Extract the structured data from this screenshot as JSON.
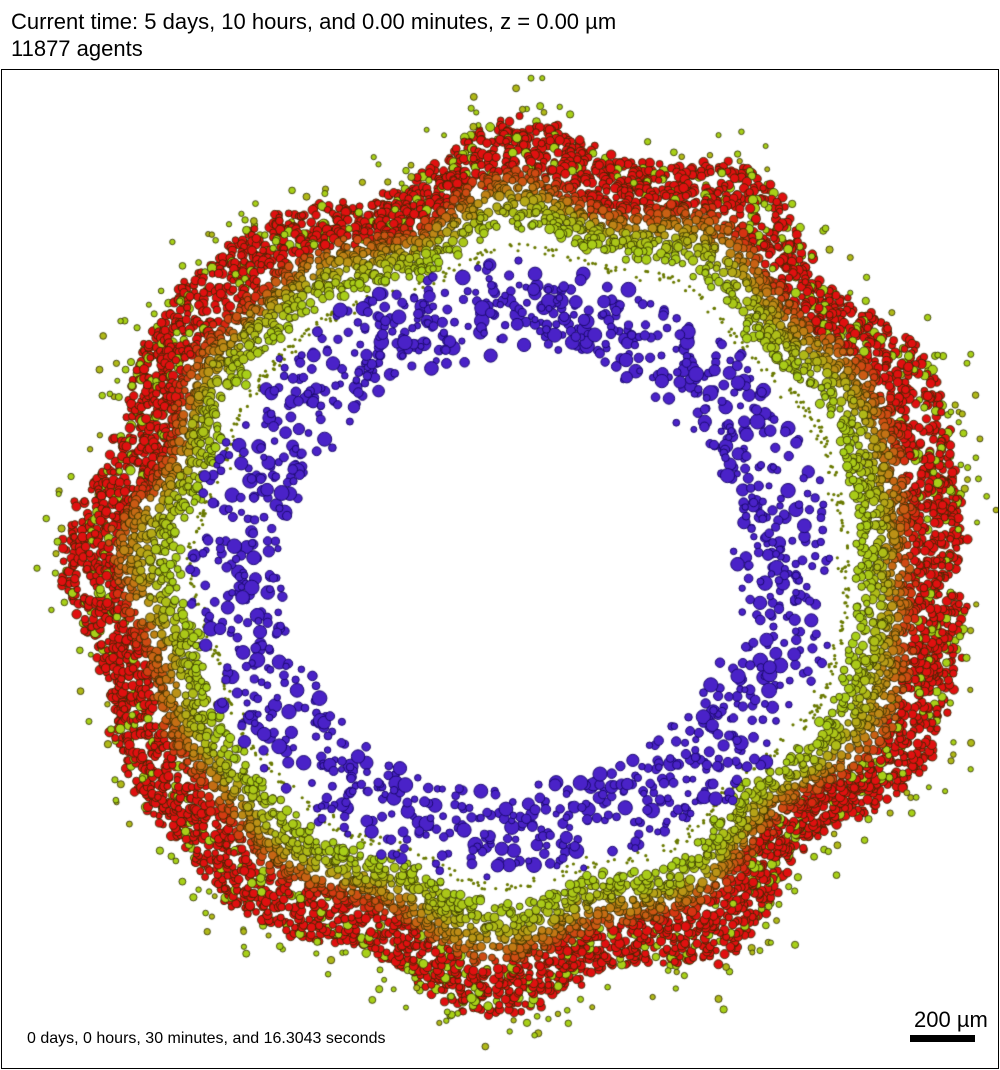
{
  "header": {
    "time_line": "Current time: 5 days, 10 hours, and 0.00 minutes, z = 0.00 µm",
    "count_line": "11877 agents"
  },
  "footer": {
    "elapsed": "0 days, 0 hours, 30 minutes, and 16.3043 seconds"
  },
  "scale_bar": {
    "label": "200 µm",
    "length_um": 200
  },
  "colors": {
    "background": "#ffffff",
    "outer_cells": "#e01010",
    "transition_cells": "#b0b818",
    "inner_ring_cells": "#a8d018",
    "cell_outline": "#2c2c00",
    "lumen_cells": "#4a22c8",
    "lumen_cell_outline": "#1c0a70"
  },
  "cell_types": [
    "outer-red-cell",
    "transition-yellow-green-cell",
    "inner-lumen-blue-cell"
  ]
}
